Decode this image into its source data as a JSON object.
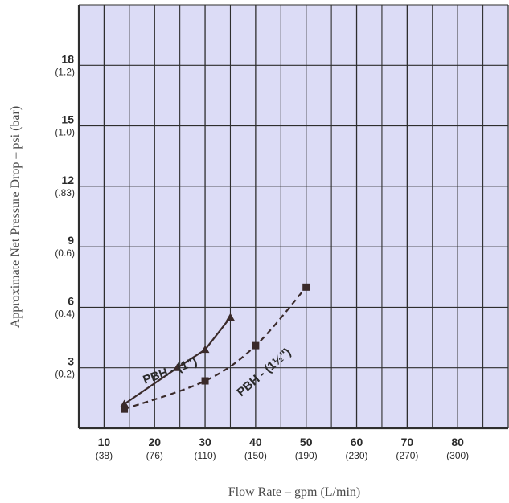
{
  "chart_data": {
    "type": "line",
    "title": "",
    "xlabel": "Flow Rate – gpm (L/min)",
    "ylabel": "Approximate Net Pressure Drop – psi (bar)",
    "xlim": [
      5,
      90
    ],
    "ylim": [
      0,
      21
    ],
    "grid": true,
    "x_ticks": [
      {
        "value": 10,
        "label": "10",
        "sub": "(38)"
      },
      {
        "value": 20,
        "label": "20",
        "sub": "(76)"
      },
      {
        "value": 30,
        "label": "30",
        "sub": "(110)"
      },
      {
        "value": 40,
        "label": "40",
        "sub": "(150)"
      },
      {
        "value": 50,
        "label": "50",
        "sub": "(190)"
      },
      {
        "value": 60,
        "label": "60",
        "sub": "(230)"
      },
      {
        "value": 70,
        "label": "70",
        "sub": "(270)"
      },
      {
        "value": 80,
        "label": "80",
        "sub": "(300)"
      }
    ],
    "y_ticks": [
      {
        "value": 3,
        "label": "3",
        "sub": "(0.2)"
      },
      {
        "value": 6,
        "label": "6",
        "sub": "(0.4)"
      },
      {
        "value": 9,
        "label": "9",
        "sub": "(0.6)"
      },
      {
        "value": 12,
        "label": "12",
        "sub": "(.83)"
      },
      {
        "value": 15,
        "label": "15",
        "sub": "(1.0)"
      },
      {
        "value": 18,
        "label": "18",
        "sub": "(1.2)"
      }
    ],
    "series": [
      {
        "name": "PBH - (1\")",
        "marker": "triangle",
        "dash": "solid",
        "points": [
          {
            "x": 14,
            "y": 1.2
          },
          {
            "x": 24.5,
            "y": 3.0
          },
          {
            "x": 30,
            "y": 3.9
          },
          {
            "x": 35,
            "y": 5.5
          }
        ]
      },
      {
        "name": "PBH - (1½\")",
        "marker": "square",
        "dash": "dashed",
        "points": [
          {
            "x": 14,
            "y": 0.95
          },
          {
            "x": 30,
            "y": 2.35
          },
          {
            "x": 40,
            "y": 4.1
          },
          {
            "x": 50,
            "y": 7.0
          }
        ]
      }
    ],
    "colors": {
      "plot_background": "#dcdcf6",
      "grid": "#2e2e2e",
      "series": "#3a2a2a"
    }
  }
}
